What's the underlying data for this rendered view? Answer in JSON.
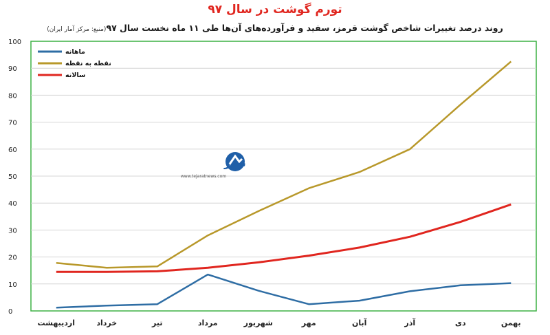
{
  "header": {
    "title": "تورم گوشت در سال ۹۷",
    "subtitle": "روند درصد تغییرات شاخص گوشت قرمز، سفید و فرآورده‌های آن‌ها طی ۱۱ ماه نخست سال ۹۷",
    "source": "(منبع: مرکز آمار ایران)"
  },
  "logo": {
    "name": "تجارت نیوز",
    "url": "www.tejaratnews.com"
  },
  "colors": {
    "monthly": "#2e6da4",
    "point": "#b8982a",
    "annual": "#e0261f",
    "border": "#3cb043",
    "grid": "#d4d4d4"
  },
  "chart_data": {
    "type": "line",
    "categories": [
      "اردیبهشت",
      "خرداد",
      "تیر",
      "مرداد",
      "شهریور",
      "مهر",
      "آبان",
      "آذر",
      "دی",
      "بهمن"
    ],
    "ylim": [
      0,
      100
    ],
    "yticks": [
      "0",
      "10",
      "20",
      "30",
      "40",
      "50",
      "60",
      "70",
      "80",
      "90",
      "100"
    ],
    "legend_position": "top-left",
    "grid": true,
    "series": [
      {
        "name": "ماهانه",
        "color": "#2e6da4",
        "values": [
          1.2,
          2.0,
          2.5,
          13.5,
          7.5,
          2.5,
          3.8,
          7.3,
          9.5,
          10.3
        ]
      },
      {
        "name": "نقطه به نقطه",
        "color": "#b8982a",
        "values": [
          17.8,
          16.0,
          16.5,
          28.0,
          37.0,
          45.5,
          51.5,
          60.0,
          76.5,
          92.5
        ]
      },
      {
        "name": "سالانه",
        "color": "#e0261f",
        "values": [
          14.5,
          14.5,
          14.7,
          16.0,
          18.0,
          20.5,
          23.5,
          27.5,
          33.0,
          39.5
        ]
      }
    ]
  }
}
